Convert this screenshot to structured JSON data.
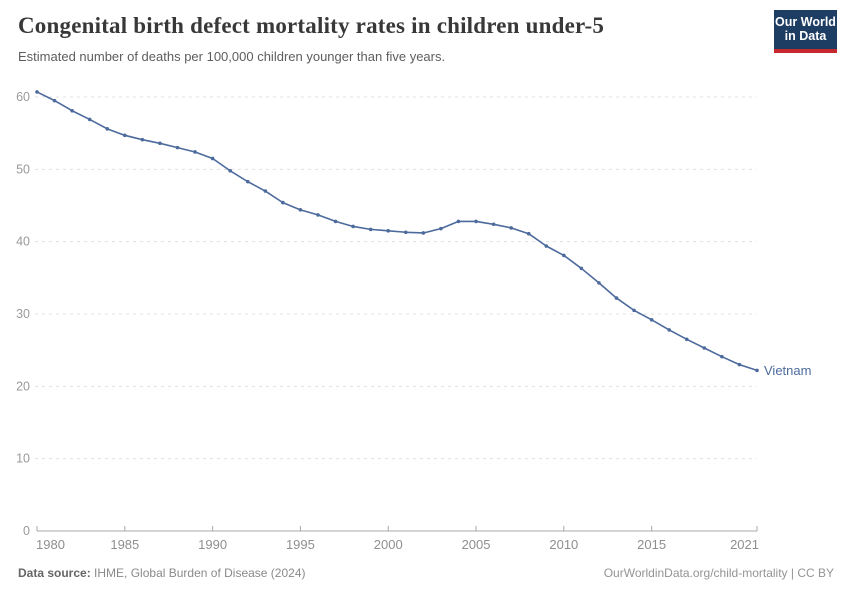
{
  "header": {
    "title": "Congenital birth defect mortality rates in children under-5",
    "subtitle": "Estimated number of deaths per 100,000 children younger than five years.",
    "logo": {
      "line1": "Our World",
      "line2": "in Data",
      "bg_color": "#1d3d63",
      "accent_color": "#c5282d"
    }
  },
  "chart_data": {
    "type": "line",
    "title": "Congenital birth defect mortality rates in children under-5",
    "subtitle": "Estimated number of deaths per 100,000 children younger than five years.",
    "xlabel": "",
    "ylabel": "",
    "ylim": [
      0,
      60
    ],
    "yticks": [
      0,
      10,
      20,
      30,
      40,
      50,
      60
    ],
    "xticks": [
      1980,
      1985,
      1990,
      1995,
      2000,
      2005,
      2010,
      2015,
      2021
    ],
    "grid": "horizontal-dashed",
    "legend_position": "end-of-line-label",
    "x": [
      1980,
      1981,
      1982,
      1983,
      1984,
      1985,
      1986,
      1987,
      1988,
      1989,
      1990,
      1991,
      1992,
      1993,
      1994,
      1995,
      1996,
      1997,
      1998,
      1999,
      2000,
      2001,
      2002,
      2003,
      2004,
      2005,
      2006,
      2007,
      2008,
      2009,
      2010,
      2011,
      2012,
      2013,
      2014,
      2015,
      2016,
      2017,
      2018,
      2019,
      2020,
      2021
    ],
    "series": [
      {
        "name": "Vietnam",
        "color": "#4c6a9c",
        "values": [
          60.7,
          59.5,
          58.1,
          56.9,
          55.6,
          54.7,
          54.1,
          53.6,
          53.0,
          52.4,
          51.5,
          49.8,
          48.3,
          47.0,
          45.4,
          44.4,
          43.7,
          42.8,
          42.1,
          41.7,
          41.5,
          41.3,
          41.2,
          41.8,
          42.8,
          42.8,
          42.4,
          41.9,
          41.1,
          39.4,
          38.1,
          36.3,
          34.3,
          32.2,
          30.5,
          29.2,
          27.8,
          26.5,
          25.3,
          24.1,
          23.0,
          22.2
        ]
      }
    ],
    "axis_colors": {
      "gridline": "#e0e0e0",
      "axis_line": "#a8a8a8",
      "tick_label": "#8f8f8f"
    }
  },
  "footer": {
    "source_label": "Data source:",
    "source_text": "IHME, Global Burden of Disease (2024)",
    "url_license": "OurWorldinData.org/child-mortality | CC BY"
  }
}
